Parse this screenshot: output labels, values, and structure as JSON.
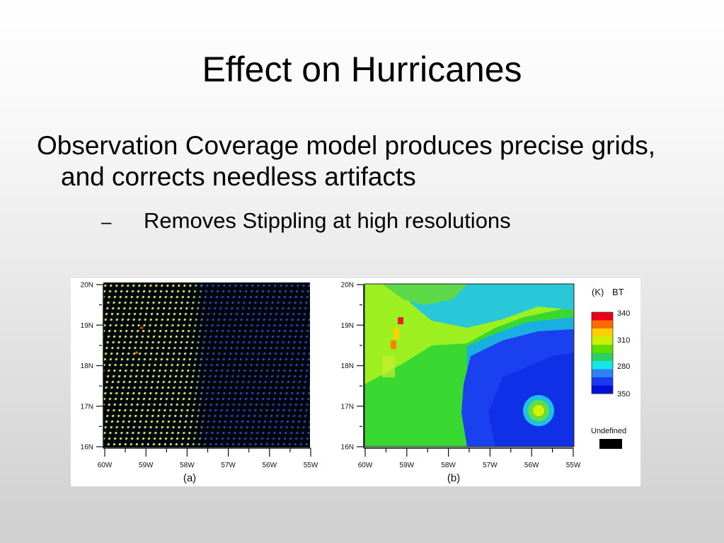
{
  "slide": {
    "title": "Effect on Hurricanes",
    "bullet": "Observation Coverage model produces precise grids, and corrects needless artifacts",
    "sub_dash": "–",
    "sub_bullet": "Removes Stippling at high resolutions"
  },
  "figure": {
    "lat_labels": [
      "20N",
      "19N",
      "18N",
      "17N",
      "16N"
    ],
    "lon_labels": [
      "60W",
      "59W",
      "58W",
      "57W",
      "56W",
      "55W"
    ],
    "panel_a_caption": "(a)",
    "panel_b_caption": "(b)",
    "legend": {
      "unit": "(K)",
      "title": "BT",
      "tick_labels": [
        "340",
        "310",
        "280",
        "350"
      ],
      "colors": [
        "#e8001a",
        "#ff6a00",
        "#ffd000",
        "#c8f000",
        "#5ce000",
        "#2cd060",
        "#10e8e8",
        "#2b82f0",
        "#1a3cf0",
        "#0010d8"
      ],
      "undefined_label": "Undefined",
      "undefined_color": "#000000"
    }
  }
}
